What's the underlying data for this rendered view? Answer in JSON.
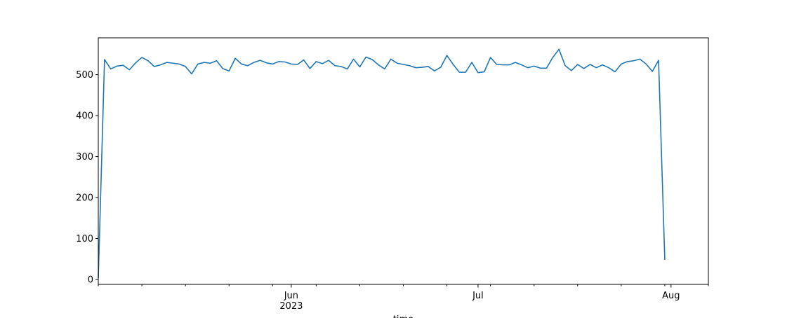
{
  "chart_data": {
    "type": "line",
    "title": "",
    "xlabel": "time",
    "ylabel": "",
    "grid": false,
    "legend": "none",
    "line_color": "#1f77b4",
    "xlim": [
      "2023-05-01",
      "2023-08-07"
    ],
    "ylim": [
      -12,
      590
    ],
    "y_ticks": [
      0,
      100,
      200,
      300,
      400,
      500
    ],
    "x_major_ticks": [
      {
        "date": "2023-06-01",
        "label": "Jun",
        "sublabel": "2023"
      },
      {
        "date": "2023-07-01",
        "label": "Jul",
        "sublabel": ""
      },
      {
        "date": "2023-08-01",
        "label": "Aug",
        "sublabel": ""
      }
    ],
    "x_minor_tick_dates": [
      "2023-05-01",
      "2023-05-08",
      "2023-05-15",
      "2023-05-22",
      "2023-05-29",
      "2023-06-05",
      "2023-06-12",
      "2023-06-19",
      "2023-06-26",
      "2023-07-03",
      "2023-07-10",
      "2023-07-17",
      "2023-07-24",
      "2023-07-31",
      "2023-08-07"
    ],
    "series": [
      {
        "start_date": "2023-05-01",
        "step_days": 1,
        "values": [
          3,
          537,
          514,
          521,
          523,
          512,
          529,
          542,
          534,
          520,
          524,
          530,
          528,
          526,
          520,
          502,
          526,
          530,
          528,
          534,
          515,
          509,
          540,
          526,
          522,
          530,
          535,
          529,
          526,
          532,
          531,
          526,
          525,
          536,
          515,
          532,
          527,
          535,
          522,
          520,
          514,
          538,
          519,
          543,
          537,
          524,
          514,
          538,
          528,
          525,
          522,
          517,
          518,
          520,
          509,
          518,
          547,
          525,
          506,
          506,
          530,
          505,
          507,
          542,
          525,
          524,
          524,
          530,
          524,
          517,
          521,
          516,
          516,
          542,
          562,
          522,
          510,
          525,
          515,
          525,
          517,
          524,
          517,
          507,
          526,
          532,
          534,
          538,
          526,
          508,
          535,
          48
        ]
      }
    ]
  }
}
